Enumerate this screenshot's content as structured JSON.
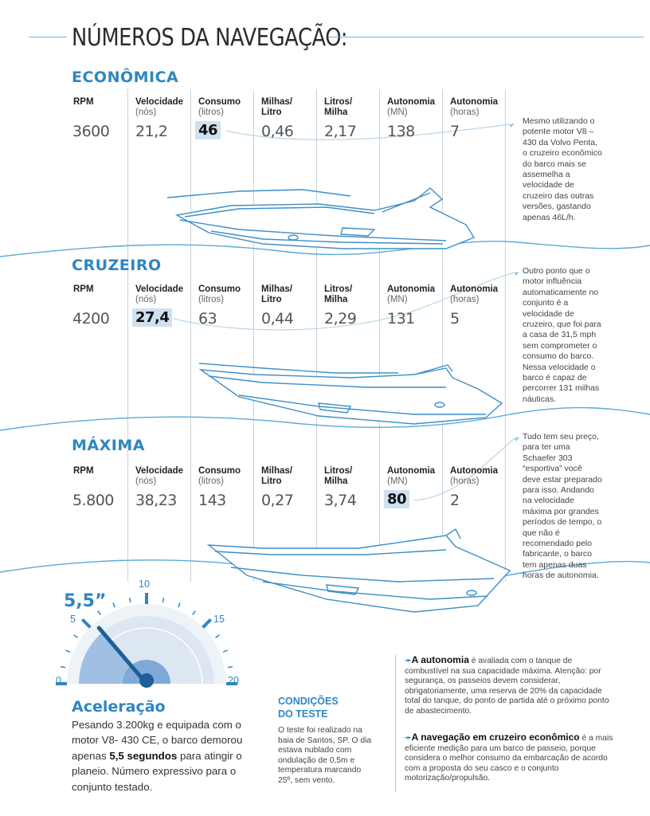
{
  "page_title": "NÚMEROS DA NAVEGAÇÃO:",
  "columns": [
    {
      "label_l1": "RPM",
      "label_l2": "",
      "unit": ""
    },
    {
      "label_l1": "Velocidade",
      "label_l2": "",
      "unit": "(nós)"
    },
    {
      "label_l1": "Consumo",
      "label_l2": "",
      "unit": "(litros)"
    },
    {
      "label_l1": "Milhas/",
      "label_l2": "Litro",
      "unit": ""
    },
    {
      "label_l1": "Litros/",
      "label_l2": "Milha",
      "unit": ""
    },
    {
      "label_l1": "Autonomia",
      "label_l2": "",
      "unit": "(MN)"
    },
    {
      "label_l1": "Autonomia",
      "label_l2": "",
      "unit": "(horas)"
    }
  ],
  "sections": [
    {
      "title": "ECONÔMICA",
      "values": [
        "3600",
        "21,2",
        "46",
        "0,46",
        "2,17",
        "138",
        "7"
      ],
      "highlight_index": 2,
      "note": "Mesmo utilizando o potente motor V8 – 430 da Volvo Penta, o cruzeiro econômico do barco mais se assemelha a velocidade de cruzeiro das outras versões, gastando apenas 46L/h."
    },
    {
      "title": "CRUZEIRO",
      "values": [
        "4200",
        "27,4",
        "63",
        "0,44",
        "2,29",
        "131",
        "5"
      ],
      "highlight_index": 1,
      "note": "Outro ponto que o motor influência automaticamente no conjunto é a velocidade de cruzeiro, que foi para a casa de 31,5 mph sem comprometer o consumo do barco. Nessa velocidade o barco é capaz de percorrer 131 milhas náuticas."
    },
    {
      "title": "MÁXIMA",
      "values": [
        "5.800",
        "38,23",
        "143",
        "0,27",
        "3,74",
        "80",
        "2"
      ],
      "highlight_index": 5,
      "note": "Tudo tem seu preço, para ter uma Schaefer 303 “esportiva” você deve estar preparado para isso. Andando na velocidade máxima por grandes períodos de tempo, o que não é recomendado pelo fabricante, o barco tem apenas duas horas de autonomia."
    }
  ],
  "gauge": {
    "time_label": "5,5”",
    "ticks": [
      "0",
      "5",
      "10",
      "15",
      "20"
    ],
    "value_seconds": 5.5,
    "range": [
      0,
      20
    ],
    "accent_color": "#2e86c1"
  },
  "acceleration": {
    "title": "Aceleração",
    "text_before": "Pesando 3.200kg e equipada com o motor V8- 430 CE, o barco demorou apenas ",
    "text_bold": "5,5 segundos",
    "text_after": " para atingir o planeio. Número expressivo para o conjunto testado."
  },
  "conditions": {
    "title_l1": "CONDIÇÕES",
    "title_l2": "DO TESTE",
    "text": "O teste foi realizado na baia de Santos, SP. O dia estava nublado com ondulação de 0,5m e temperatura marcando 25º, sem vento."
  },
  "notes": [
    {
      "lead": "A autonomia",
      "text": " é avaliada com o tanque de combustível na sua capacidade máxima. Atenção: por segurança, os passeios devem considerar, obrigatoriamente, uma reserva de 20% da capacidade total do tanque, do ponto de partida até o próximo ponto de abastecimento."
    },
    {
      "lead": "A navegação em cruzeiro econômico",
      "text": " é a mais eficiente medição para um barco de passeio, porque considera o melhor consumo da embarcação de acordo com a proposta do seu casco e o conjunto motorização/propulsão."
    }
  ],
  "colors": {
    "accent": "#2e86c1",
    "highlight": "#cfe1f1",
    "wave": "#5aa9d8"
  }
}
